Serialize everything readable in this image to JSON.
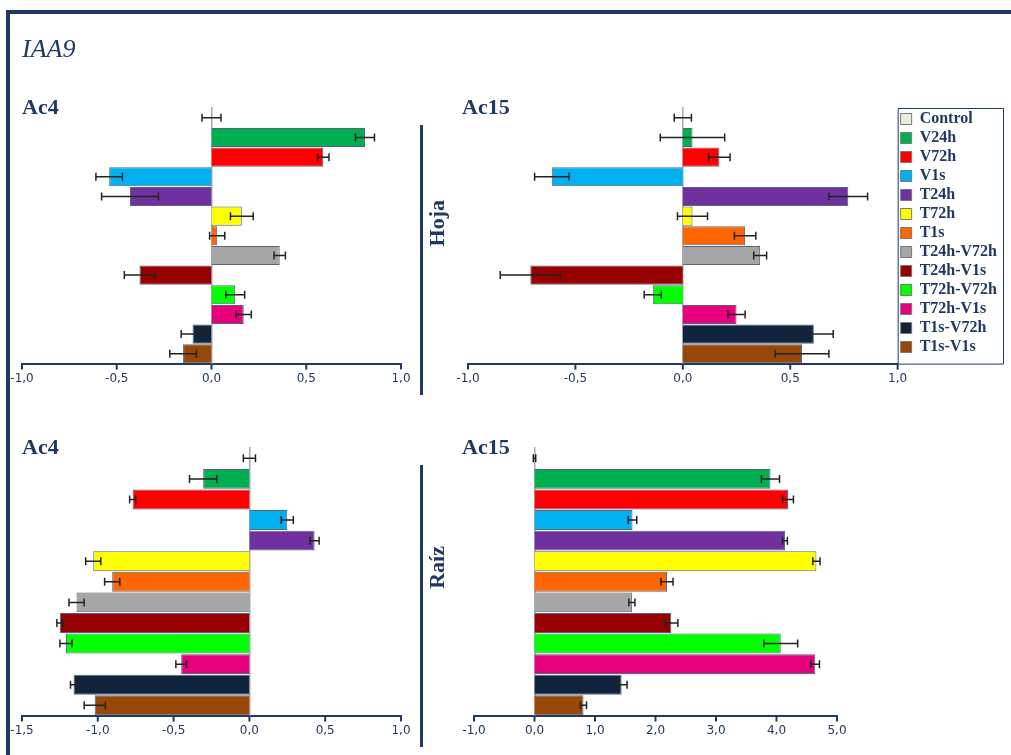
{
  "chart_data": [
    {
      "type": "bar",
      "orientation": "horizontal",
      "title": "Ac4",
      "annotations": [
        "IAA9"
      ],
      "tick_labels": "x",
      "categories": [
        null,
        null,
        null,
        null,
        null,
        null,
        null,
        null,
        null,
        null,
        null,
        null,
        null
      ],
      "colors": [
        "#e8eedd",
        "#00b050",
        "#ff0000",
        "#00b0f0",
        "#7030a0",
        "#ffff00",
        "#ff6600",
        "#a6a6a6",
        "#960000",
        "#00ff00",
        "#e6007e",
        "#10243e",
        "#974706"
      ],
      "values": [
        0,
        0.81,
        0.59,
        -0.54,
        -0.43,
        0.16,
        0.03,
        0.36,
        -0.38,
        0.125,
        0.17,
        -0.1,
        -0.15
      ],
      "errors": [
        0.05,
        0.05,
        0.03,
        0.07,
        0.15,
        0.06,
        0.04,
        0.03,
        0.08,
        0.05,
        0.04,
        0.06,
        0.07
      ],
      "xlim": [
        -1,
        1
      ],
      "xticks": [
        {
          "value": -1,
          "label": "-1,0"
        },
        {
          "value": -0.5,
          "label": "-0,5"
        },
        {
          "value": 0,
          "label": "0,0"
        },
        {
          "value": 0.5,
          "label": "0,5"
        },
        {
          "value": 1,
          "label": "1,0"
        }
      ]
    },
    {
      "type": "bar",
      "orientation": "horizontal",
      "title": "Ac15",
      "ylabel": "Hoja",
      "legend": "right",
      "tick_labels": "x",
      "categories": [
        null,
        null,
        null,
        null,
        null,
        null,
        null,
        null,
        null,
        null,
        null,
        null,
        null
      ],
      "series": [
        {
          "name": "Control",
          "color": "#e8eedd",
          "values": [
            0,
            null,
            null,
            null,
            null,
            null,
            null,
            null,
            null,
            null,
            null,
            null,
            null
          ],
          "errors": [
            0.04,
            null,
            null,
            null,
            null,
            null,
            null,
            null,
            null,
            null,
            null,
            null,
            null
          ]
        },
        {
          "name": "V24h",
          "color": "#00b050",
          "values": [
            null,
            0.045,
            null,
            null,
            null,
            null,
            null,
            null,
            null,
            null,
            null,
            null,
            null
          ],
          "errors": [
            null,
            0.15,
            null,
            null,
            null,
            null,
            null,
            null,
            null,
            null,
            null,
            null,
            null
          ]
        },
        {
          "name": "V72h",
          "color": "#ff0000",
          "values": [
            null,
            null,
            0.17,
            null,
            null,
            null,
            null,
            null,
            null,
            null,
            null,
            null,
            null
          ],
          "errors": [
            null,
            null,
            0.05,
            null,
            null,
            null,
            null,
            null,
            null,
            null,
            null,
            null,
            null
          ]
        },
        {
          "name": "V1s",
          "color": "#00b0f0",
          "values": [
            null,
            null,
            null,
            -0.61,
            null,
            null,
            null,
            null,
            null,
            null,
            null,
            null,
            null
          ],
          "errors": [
            null,
            null,
            null,
            0.08,
            null,
            null,
            null,
            null,
            null,
            null,
            null,
            null,
            null
          ]
        },
        {
          "name": "T24h",
          "color": "#7030a0",
          "values": [
            null,
            null,
            null,
            null,
            0.77,
            null,
            null,
            null,
            null,
            null,
            null,
            null,
            null
          ],
          "errors": [
            null,
            null,
            null,
            null,
            0.09,
            null,
            null,
            null,
            null,
            null,
            null,
            null,
            null
          ]
        },
        {
          "name": "T72h",
          "color": "#ffff00",
          "values": [
            null,
            null,
            null,
            null,
            null,
            0.045,
            null,
            null,
            null,
            null,
            null,
            null,
            null
          ],
          "errors": [
            null,
            null,
            null,
            null,
            null,
            0.07,
            null,
            null,
            null,
            null,
            null,
            null,
            null
          ]
        },
        {
          "name": "T1s",
          "color": "#ff6600",
          "values": [
            null,
            null,
            null,
            null,
            null,
            null,
            0.29,
            null,
            null,
            null,
            null,
            null,
            null
          ],
          "errors": [
            null,
            null,
            null,
            null,
            null,
            null,
            0.05,
            null,
            null,
            null,
            null,
            null,
            null
          ]
        },
        {
          "name": "T24h-V72h",
          "color": "#a6a6a6",
          "values": [
            null,
            null,
            null,
            null,
            null,
            null,
            null,
            0.36,
            null,
            null,
            null,
            null,
            null
          ],
          "errors": [
            null,
            null,
            null,
            null,
            null,
            null,
            null,
            0.03,
            null,
            null,
            null,
            null,
            null
          ]
        },
        {
          "name": "T24h-V1s",
          "color": "#960000",
          "values": [
            null,
            null,
            null,
            null,
            null,
            null,
            null,
            null,
            -0.71,
            null,
            null,
            null,
            null
          ],
          "errors": [
            null,
            null,
            null,
            null,
            null,
            null,
            null,
            null,
            0.14,
            null,
            null,
            null,
            null
          ]
        },
        {
          "name": "T72h-V72h",
          "color": "#00ff00",
          "values": [
            null,
            null,
            null,
            null,
            null,
            null,
            null,
            null,
            null,
            -0.14,
            null,
            null,
            null
          ],
          "errors": [
            null,
            null,
            null,
            null,
            null,
            null,
            null,
            null,
            null,
            0.04,
            null,
            null,
            null
          ]
        },
        {
          "name": "T72h-V1s",
          "color": "#e6007e",
          "values": [
            null,
            null,
            null,
            null,
            null,
            null,
            null,
            null,
            null,
            null,
            0.25,
            null,
            null
          ],
          "errors": [
            null,
            null,
            null,
            null,
            null,
            null,
            null,
            null,
            null,
            null,
            0.04,
            null,
            null
          ]
        },
        {
          "name": "T1s-V72h",
          "color": "#10243e",
          "values": [
            null,
            null,
            null,
            null,
            null,
            null,
            null,
            null,
            null,
            null,
            null,
            0.61,
            null
          ],
          "errors": [
            null,
            null,
            null,
            null,
            null,
            null,
            null,
            null,
            null,
            null,
            null,
            0.09,
            null
          ]
        },
        {
          "name": "T1s-V1s",
          "color": "#974706",
          "values": [
            null,
            null,
            null,
            null,
            null,
            null,
            null,
            null,
            null,
            null,
            null,
            null,
            0.555
          ],
          "errors": [
            null,
            null,
            null,
            null,
            null,
            null,
            null,
            null,
            null,
            null,
            null,
            null,
            0.125
          ]
        }
      ],
      "xlim": [
        -1,
        1
      ],
      "xticks": [
        {
          "value": -1,
          "label": "-1,0"
        },
        {
          "value": -0.5,
          "label": "-0,5"
        },
        {
          "value": 0,
          "label": "0,0"
        },
        {
          "value": 0.5,
          "label": "0,5"
        },
        {
          "value": 1,
          "label": "1,0"
        }
      ]
    },
    {
      "type": "bar",
      "orientation": "horizontal",
      "title": "Ac4",
      "tick_labels": "x",
      "categories": [
        null,
        null,
        null,
        null,
        null,
        null,
        null,
        null,
        null,
        null,
        null,
        null,
        null
      ],
      "colors": [
        "#e8eedd",
        "#00b050",
        "#ff0000",
        "#00b0f0",
        "#7030a0",
        "#ffff00",
        "#ff6600",
        "#a6a6a6",
        "#960000",
        "#00ff00",
        "#e6007e",
        "#10243e",
        "#974706"
      ],
      "values": [
        0,
        -0.305,
        -0.77,
        0.25,
        0.43,
        -1.03,
        -0.905,
        -1.14,
        -1.25,
        -1.21,
        -0.45,
        -1.16,
        -1.02
      ],
      "errors": [
        0.04,
        0.09,
        0.02,
        0.04,
        0.03,
        0.05,
        0.05,
        0.05,
        0.02,
        0.04,
        0.035,
        0.02,
        0.07
      ],
      "xlim": [
        -1.5,
        1
      ],
      "xticks": [
        {
          "value": -1.5,
          "label": "-1,5"
        },
        {
          "value": -1,
          "label": "-1,0"
        },
        {
          "value": -0.5,
          "label": "-0,5"
        },
        {
          "value": 0,
          "label": "0,0"
        },
        {
          "value": 0.5,
          "label": "0,5"
        },
        {
          "value": 1,
          "label": "1,0"
        }
      ]
    },
    {
      "type": "bar",
      "orientation": "horizontal",
      "title": "Ac15",
      "ylabel": "Raíz",
      "tick_labels": "x",
      "categories": [
        null,
        null,
        null,
        null,
        null,
        null,
        null,
        null,
        null,
        null,
        null,
        null,
        null
      ],
      "colors": [
        "#e8eedd",
        "#00b050",
        "#ff0000",
        "#00b0f0",
        "#7030a0",
        "#ffff00",
        "#ff6600",
        "#a6a6a6",
        "#960000",
        "#00ff00",
        "#e6007e",
        "#10243e",
        "#974706"
      ],
      "values": [
        0,
        3.9,
        4.19,
        1.62,
        4.14,
        4.66,
        2.19,
        1.61,
        2.26,
        4.07,
        4.64,
        1.44,
        0.81
      ],
      "errors": [
        0.02,
        0.15,
        0.09,
        0.07,
        0.04,
        0.06,
        0.1,
        0.05,
        0.11,
        0.28,
        0.07,
        0.09,
        0.05
      ],
      "xlim": [
        -1,
        5
      ],
      "xticks": [
        {
          "value": -1,
          "label": "-1,0"
        },
        {
          "value": 0,
          "label": "0,0"
        },
        {
          "value": 1,
          "label": "1,0"
        },
        {
          "value": 2,
          "label": "2,0"
        },
        {
          "value": 3,
          "label": "3,0"
        },
        {
          "value": 4,
          "label": "4,0"
        },
        {
          "value": 5,
          "label": "5,0"
        }
      ]
    }
  ]
}
